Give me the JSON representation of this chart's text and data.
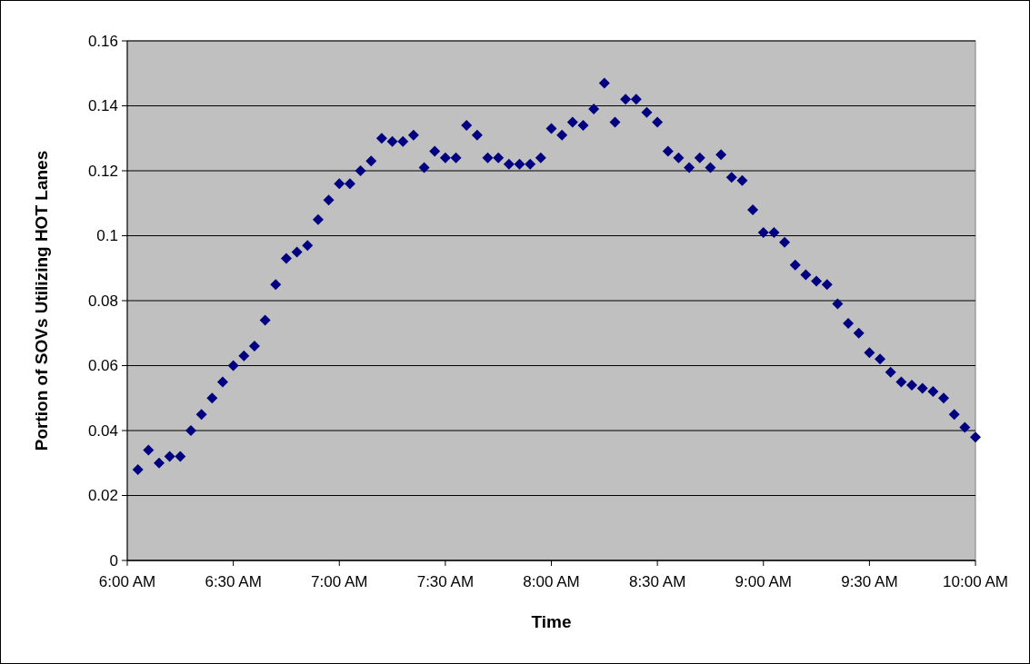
{
  "chart_data": {
    "type": "scatter",
    "xlabel": "Time",
    "ylabel": "Portion of SOVs Utilizing HOT Lanes",
    "x": [
      6.05,
      6.1,
      6.15,
      6.2,
      6.25,
      6.3,
      6.35,
      6.4,
      6.45,
      6.5,
      6.55,
      6.6,
      6.65,
      6.7,
      6.75,
      6.8,
      6.85,
      6.9,
      6.95,
      7.0,
      7.05,
      7.1,
      7.15,
      7.2,
      7.25,
      7.3,
      7.35,
      7.4,
      7.45,
      7.5,
      7.55,
      7.6,
      7.65,
      7.7,
      7.75,
      7.8,
      7.85,
      7.9,
      7.95,
      8.0,
      8.05,
      8.1,
      8.15,
      8.2,
      8.25,
      8.3,
      8.35,
      8.4,
      8.45,
      8.5,
      8.55,
      8.6,
      8.65,
      8.7,
      8.75,
      8.8,
      8.85,
      8.9,
      8.95,
      9.0,
      9.05,
      9.1,
      9.15,
      9.2,
      9.25,
      9.3,
      9.35,
      9.4,
      9.45,
      9.5,
      9.55,
      9.6,
      9.65,
      9.7,
      9.75,
      9.8,
      9.85,
      9.9,
      9.95,
      10.0
    ],
    "series": [
      {
        "color": "#000080",
        "values": [
          0.028,
          0.034,
          0.03,
          0.032,
          0.032,
          0.04,
          0.045,
          0.05,
          0.055,
          0.06,
          0.063,
          0.066,
          0.074,
          0.085,
          0.093,
          0.095,
          0.097,
          0.105,
          0.111,
          0.116,
          0.116,
          0.12,
          0.123,
          0.13,
          0.129,
          0.129,
          0.131,
          0.121,
          0.126,
          0.124,
          0.124,
          0.134,
          0.131,
          0.124,
          0.124,
          0.122,
          0.122,
          0.122,
          0.124,
          0.133,
          0.131,
          0.135,
          0.134,
          0.139,
          0.147,
          0.135,
          0.142,
          0.142,
          0.138,
          0.135,
          0.126,
          0.124,
          0.121,
          0.124,
          0.121,
          0.125,
          0.118,
          0.117,
          0.108,
          0.101,
          0.101,
          0.098,
          0.091,
          0.088,
          0.086,
          0.085,
          0.079,
          0.073,
          0.07,
          0.064,
          0.062,
          0.058,
          0.055,
          0.054,
          0.053,
          0.052,
          0.05,
          0.045,
          0.041,
          0.038
        ]
      }
    ],
    "xlim": [
      6,
      10
    ],
    "xticks": [
      {
        "value": 6,
        "label": "6:00 AM"
      },
      {
        "value": 6.5,
        "label": "6:30 AM"
      },
      {
        "value": 7,
        "label": "7:00 AM"
      },
      {
        "value": 7.5,
        "label": "7:30 AM"
      },
      {
        "value": 8,
        "label": "8:00 AM"
      },
      {
        "value": 8.5,
        "label": "8:30 AM"
      },
      {
        "value": 9,
        "label": "9:00 AM"
      },
      {
        "value": 9.5,
        "label": "9:30 AM"
      },
      {
        "value": 10,
        "label": "10:00 AM"
      }
    ],
    "ylim": [
      0,
      0.16
    ],
    "yticks": [
      0,
      0.02,
      0.04,
      0.06,
      0.08,
      0.1,
      0.12,
      0.14,
      0.16
    ],
    "grid": "y",
    "marker": "diamond"
  }
}
